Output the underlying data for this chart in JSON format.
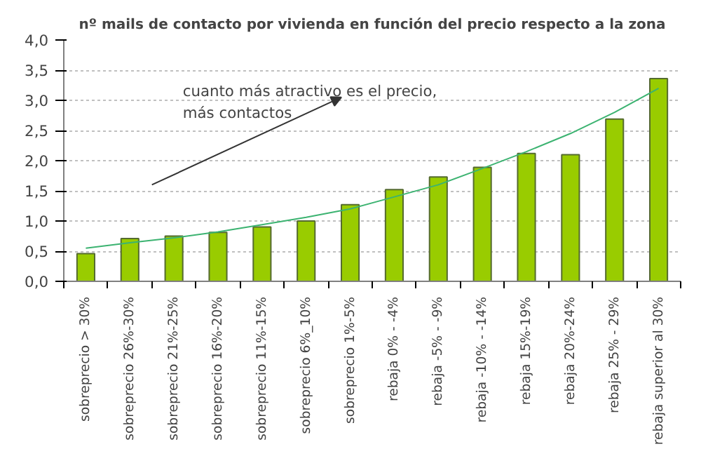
{
  "chart_data": {
    "type": "bar",
    "title": "nº mails de contacto por vivienda en función del precio respecto a la zona",
    "categories": [
      "sobreprecio > 30%",
      "sobreprecio 26%-30%",
      "sobreprecio 21%-25%",
      "sobreprecio 16%-20%",
      "sobreprecio 11%-15%",
      "sobreprecio 6%_10%",
      "sobreprecio 1%-5%",
      "rebaja 0% - -4%",
      "rebaja -5% - -9%",
      "rebaja -10% - -14%",
      "rebaja 15%-19%",
      "rebaja 20%-24%",
      "rebaja 25% - 29%",
      "rebaja superior al 30%"
    ],
    "series": [
      {
        "color": "#99cc00",
        "values": [
          0.46,
          0.71,
          0.75,
          0.81,
          0.9,
          1.0,
          1.27,
          1.52,
          1.73,
          1.89,
          2.12,
          2.1,
          2.69,
          3.36
        ]
      },
      {
        "type": "line",
        "color": "#3cb371",
        "values": [
          0.55,
          0.64,
          0.72,
          0.82,
          0.94,
          1.06,
          1.2,
          1.4,
          1.6,
          1.87,
          2.15,
          2.45,
          2.8,
          3.2
        ]
      }
    ],
    "ylim": [
      0,
      4
    ],
    "yticks": [
      {
        "value": 0,
        "label": "0,0"
      },
      {
        "value": 0.5,
        "label": "0,5"
      },
      {
        "value": 1,
        "label": "1,0"
      },
      {
        "value": 1.5,
        "label": "1,5"
      },
      {
        "value": 2,
        "label": "2,0"
      },
      {
        "value": 2.5,
        "label": "2,5"
      },
      {
        "value": 3,
        "label": "3,0"
      },
      {
        "value": 3.5,
        "label": "3,5"
      },
      {
        "value": 4,
        "label": "4,0"
      }
    ],
    "grid": "y",
    "marker": "none",
    "line_style": "solid",
    "annotations": [
      "cuanto más atractivo es el precio,\nmás contactos"
    ]
  }
}
